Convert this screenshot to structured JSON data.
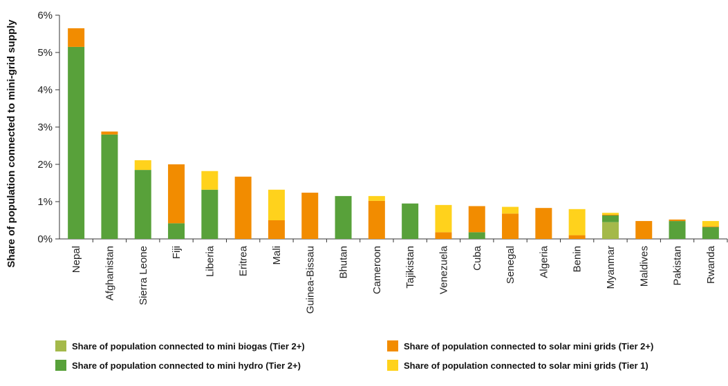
{
  "chart_data": {
    "type": "bar",
    "stacked": true,
    "ylabel": "Share of population connected to mini-grid supply",
    "xlabel": "",
    "ylim": [
      0,
      6
    ],
    "yticks": [
      "0%",
      "1%",
      "2%",
      "3%",
      "4%",
      "5%",
      "6%"
    ],
    "grid": false,
    "legend_position": "bottom",
    "categories": [
      "Nepal",
      "Afghanistan",
      "Sierra Leone",
      "Fiji",
      "Liberia",
      "Eritrea",
      "Mali",
      "Guinea-Bissau",
      "Bhutan",
      "Cameroon",
      "Tajikistan",
      "Venezuela",
      "Cuba",
      "Senegal",
      "Algeria",
      "Benin",
      "Myanmar",
      "Maldives",
      "Pakistan",
      "Rwanda"
    ],
    "series": [
      {
        "name": "Share of population connected to mini biogas (Tier 2+)",
        "color": "#a4b94a",
        "values": [
          0,
          0,
          0,
          0,
          0,
          0,
          0,
          0,
          0,
          0,
          0,
          0,
          0,
          0,
          0,
          0,
          0.45,
          0,
          0,
          0
        ]
      },
      {
        "name": "Share of population connected to mini hydro (Tier 2+)",
        "color": "#58a13a",
        "values": [
          5.15,
          2.8,
          1.85,
          0.42,
          1.32,
          0,
          0,
          0,
          1.15,
          0,
          0.95,
          0,
          0.18,
          0,
          0,
          0,
          0.18,
          0,
          0.48,
          0.32
        ]
      },
      {
        "name": "Share of population connected to solar mini grids (Tier 2+)",
        "color": "#f28c00",
        "values": [
          0.5,
          0.08,
          0,
          1.58,
          0,
          1.67,
          0.5,
          1.24,
          0,
          1.02,
          0,
          0.18,
          0.7,
          0.68,
          0.83,
          0.1,
          0.02,
          0.48,
          0.04,
          0.02
        ]
      },
      {
        "name": "Share of population connected to solar mini grids (Tier 1)",
        "color": "#ffd21c",
        "values": [
          0,
          0,
          0.26,
          0,
          0.5,
          0,
          0.82,
          0,
          0,
          0.13,
          0,
          0.73,
          0,
          0.18,
          0,
          0.7,
          0.05,
          0,
          0,
          0.14
        ]
      }
    ],
    "legend_order": [
      0,
      2,
      1,
      3
    ]
  }
}
